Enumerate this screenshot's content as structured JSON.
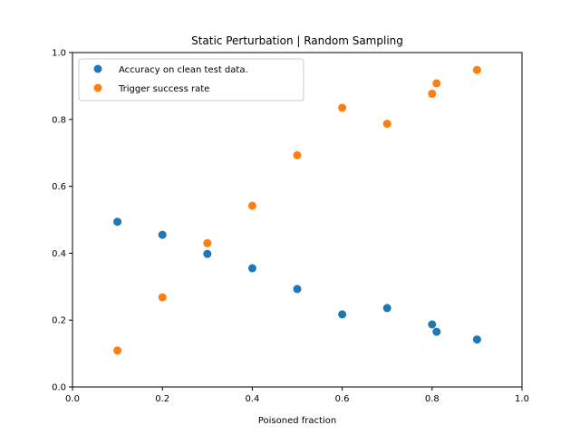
{
  "chart_data": {
    "type": "scatter",
    "title": "Static Perturbation | Random Sampling",
    "xlabel": "Poisoned fraction",
    "ylabel": "",
    "xlim": [
      0.0,
      1.0
    ],
    "ylim": [
      0.0,
      1.0
    ],
    "xticks": [
      "0.0",
      "0.2",
      "0.4",
      "0.6",
      "0.8",
      "1.0"
    ],
    "yticks": [
      "0.0",
      "0.2",
      "0.4",
      "0.6",
      "0.8",
      "1.0"
    ],
    "grid": false,
    "legend_position": "top-left",
    "series": [
      {
        "name": "Accuracy on clean test data.",
        "color": "#1f77b4",
        "points": [
          {
            "x": 0.1,
            "y": 0.494
          },
          {
            "x": 0.2,
            "y": 0.455
          },
          {
            "x": 0.3,
            "y": 0.398
          },
          {
            "x": 0.4,
            "y": 0.355
          },
          {
            "x": 0.5,
            "y": 0.293
          },
          {
            "x": 0.6,
            "y": 0.217
          },
          {
            "x": 0.7,
            "y": 0.236
          },
          {
            "x": 0.8,
            "y": 0.187
          },
          {
            "x": 0.81,
            "y": 0.165
          },
          {
            "x": 0.9,
            "y": 0.142
          }
        ]
      },
      {
        "name": "Trigger success rate",
        "color": "#ff7f0e",
        "points": [
          {
            "x": 0.1,
            "y": 0.109
          },
          {
            "x": 0.2,
            "y": 0.268
          },
          {
            "x": 0.3,
            "y": 0.43
          },
          {
            "x": 0.4,
            "y": 0.542
          },
          {
            "x": 0.5,
            "y": 0.693
          },
          {
            "x": 0.6,
            "y": 0.835
          },
          {
            "x": 0.7,
            "y": 0.787
          },
          {
            "x": 0.8,
            "y": 0.877
          },
          {
            "x": 0.81,
            "y": 0.908
          },
          {
            "x": 0.9,
            "y": 0.948
          }
        ]
      }
    ]
  }
}
